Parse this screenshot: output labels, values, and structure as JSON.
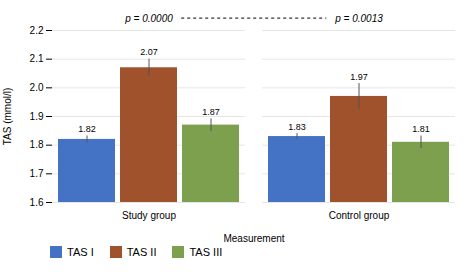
{
  "chart_data": {
    "type": "bar",
    "categories": [
      "Study group",
      "Control group"
    ],
    "series": [
      {
        "name": "TAS I",
        "color": "#4472C4",
        "values": [
          1.82,
          1.83
        ],
        "errors": [
          0.012,
          0.01
        ]
      },
      {
        "name": "TAS II",
        "color": "#A0522D",
        "values": [
          2.07,
          1.97
        ],
        "errors": [
          0.03,
          0.045
        ]
      },
      {
        "name": "TAS III",
        "color": "#7CA04E",
        "values": [
          1.87,
          1.81
        ],
        "errors": [
          0.022,
          0.022
        ]
      }
    ],
    "xlabel": "Measurement",
    "ylabel": "TAS (mmol/l)",
    "ylim": [
      1.6,
      2.2
    ],
    "yticks": [
      1.6,
      1.7,
      1.8,
      1.9,
      {
        "value": 2,
        "label": "2.0"
      },
      2.1,
      2.2
    ],
    "grid": true,
    "legend": "bottom",
    "data_labels": true,
    "annotations": [
      "p = 0.0000",
      "p = 0.0013"
    ]
  }
}
